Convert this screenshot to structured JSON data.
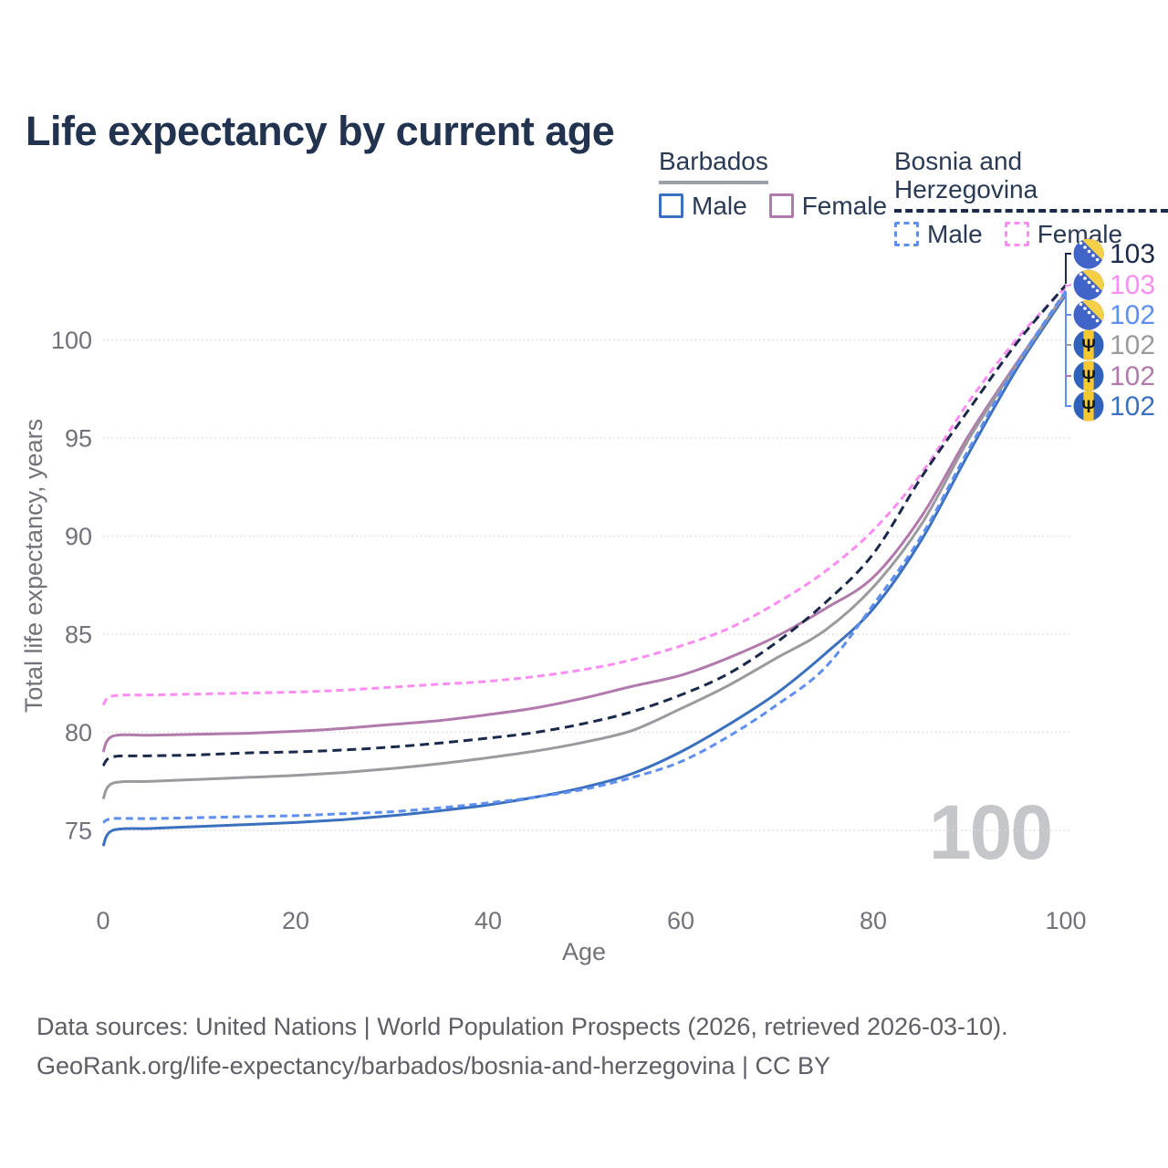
{
  "title": "Life expectancy by current age",
  "legend": {
    "groups": [
      {
        "title": "Barbados",
        "underline_style": "solid",
        "underline_color": "#9aa0a6",
        "items": [
          {
            "label": "Male",
            "color": "#3a70bd",
            "dash": "solid"
          },
          {
            "label": "Female",
            "color": "#b279ad",
            "dash": "solid"
          }
        ]
      },
      {
        "title": "Bosnia and Herzegovina",
        "underline_style": "dashed",
        "underline_color": "#1b2a4a",
        "items": [
          {
            "label": "Male",
            "color": "#5d8ef0",
            "dash": "dashed"
          },
          {
            "label": "Female",
            "color": "#fb8df2",
            "dash": "dashed"
          }
        ]
      }
    ]
  },
  "chart_data": {
    "type": "line",
    "title": "Life expectancy by current age",
    "xlabel": "Age",
    "ylabel": "Total life expectancy, years",
    "xlim": [
      0,
      100
    ],
    "ylim": [
      73.5,
      103.5
    ],
    "x_ticks": [
      0,
      20,
      40,
      60,
      80,
      100
    ],
    "y_ticks": [
      75,
      80,
      85,
      90,
      95,
      100
    ],
    "grid": "horizontal-dotted",
    "legend_position": "top-right",
    "watermark": "100",
    "ages": [
      0,
      1,
      5,
      10,
      15,
      20,
      25,
      30,
      35,
      40,
      45,
      50,
      55,
      60,
      65,
      70,
      75,
      80,
      85,
      90,
      95,
      100
    ],
    "series": [
      {
        "name": "Barbados Male",
        "country": "Barbados",
        "sex": "Male",
        "line": "solid",
        "dash": "",
        "color": "#3a70bd",
        "values": [
          74.2,
          75.0,
          75.1,
          75.2,
          75.3,
          75.4,
          75.55,
          75.75,
          76.0,
          76.3,
          76.7,
          77.2,
          77.9,
          79.0,
          80.4,
          82.0,
          84.0,
          86.3,
          89.8,
          94.3,
          98.6,
          102.3
        ]
      },
      {
        "name": "Barbados Female",
        "country": "Barbados",
        "sex": "Female",
        "line": "solid",
        "dash": "",
        "color": "#b279ad",
        "values": [
          79.0,
          79.8,
          79.85,
          79.9,
          79.95,
          80.05,
          80.2,
          80.4,
          80.6,
          80.9,
          81.25,
          81.75,
          82.35,
          82.9,
          83.8,
          84.9,
          86.3,
          87.9,
          91.0,
          95.2,
          98.9,
          102.4
        ]
      },
      {
        "name": "Barbados Total",
        "country": "Barbados",
        "sex": "Both",
        "line": "solid",
        "dash": "",
        "color": "#9b9b9f",
        "values": [
          76.6,
          77.4,
          77.5,
          77.6,
          77.7,
          77.8,
          77.95,
          78.15,
          78.4,
          78.7,
          79.05,
          79.5,
          80.1,
          81.2,
          82.4,
          83.8,
          85.2,
          87.4,
          90.6,
          95.0,
          98.8,
          102.45
        ]
      },
      {
        "name": "Bosnia and Herzegovina Male",
        "country": "Bosnia and Herzegovina",
        "sex": "Male",
        "line": "dashed",
        "dash": "8 5",
        "color": "#5d8ef0",
        "values": [
          75.4,
          75.6,
          75.6,
          75.65,
          75.7,
          75.75,
          75.85,
          75.95,
          76.15,
          76.4,
          76.7,
          77.1,
          77.7,
          78.5,
          79.8,
          81.4,
          83.3,
          86.5,
          90.0,
          94.5,
          98.8,
          102.5
        ]
      },
      {
        "name": "Bosnia and Herzegovina Female",
        "country": "Bosnia and Herzegovina",
        "sex": "Female",
        "line": "dashed",
        "dash": "8 5",
        "color": "#fb8df2",
        "values": [
          81.4,
          81.85,
          81.9,
          81.95,
          82.0,
          82.05,
          82.15,
          82.3,
          82.45,
          82.6,
          82.85,
          83.2,
          83.7,
          84.4,
          85.3,
          86.6,
          88.2,
          90.3,
          93.2,
          96.9,
          100.1,
          102.7
        ]
      },
      {
        "name": "Bosnia and Herzegovina Total",
        "country": "Bosnia and Herzegovina",
        "sex": "Both",
        "line": "dashed",
        "dash": "10 6",
        "color": "#1b2a4a",
        "values": [
          78.3,
          78.75,
          78.8,
          78.85,
          78.95,
          79.0,
          79.1,
          79.25,
          79.45,
          79.7,
          80.0,
          80.45,
          81.05,
          81.9,
          83.0,
          84.6,
          86.6,
          89.1,
          93.0,
          96.5,
          99.9,
          102.8
        ]
      }
    ],
    "end_labels": [
      {
        "value": "103",
        "flag": "bosnia-and-herzegovina",
        "flag_ref": "#flag-bosnia",
        "color": "#1b2a4a"
      },
      {
        "value": "103",
        "flag": "bosnia-and-herzegovina",
        "flag_ref": "#flag-bosnia",
        "color": "#fb8df2"
      },
      {
        "value": "102",
        "flag": "bosnia-and-herzegovina",
        "flag_ref": "#flag-bosnia",
        "color": "#5d8ef0"
      },
      {
        "value": "102",
        "flag": "barbados",
        "flag_ref": "#flag-barbados",
        "color": "#9b9b9f"
      },
      {
        "value": "102",
        "flag": "barbados",
        "flag_ref": "#flag-barbados",
        "color": "#b279ad"
      },
      {
        "value": "102",
        "flag": "barbados",
        "flag_ref": "#flag-barbados",
        "color": "#3a70bd"
      }
    ]
  },
  "footer": {
    "line1": "Data sources: United Nations | World Population Prospects (2026, retrieved 2026-03-10).",
    "line2": "GeoRank.org/life-expectancy/barbados/bosnia-and-herzegovina | CC BY"
  }
}
